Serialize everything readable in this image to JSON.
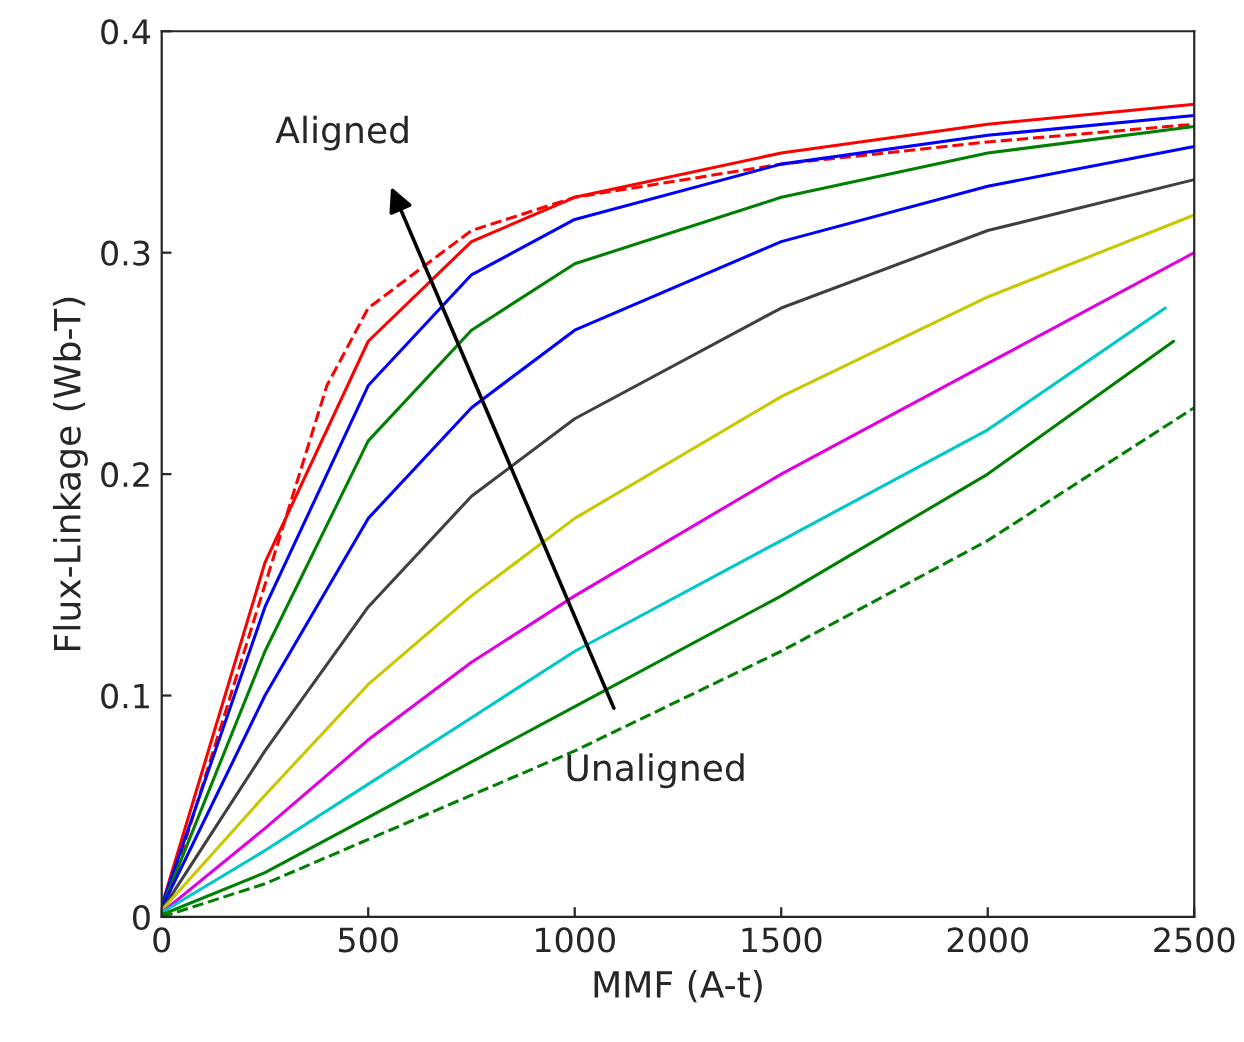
{
  "chart_data": {
    "type": "line",
    "xlabel": "MMF (A-t)",
    "ylabel": "Flux-Linkage (Wb-T)",
    "xlim": [
      0,
      2500
    ],
    "ylim": [
      0,
      0.4
    ],
    "xticks": [
      0,
      500,
      1000,
      1500,
      2000,
      2500
    ],
    "yticks": [
      0,
      0.1,
      0.2,
      0.3,
      0.4
    ],
    "grid": false,
    "marker": "none",
    "annotations": [
      "Aligned",
      "Unaligned"
    ],
    "series": [
      {
        "color": "#ff0000",
        "line_style": "dashed",
        "x": [
          0,
          100,
          250,
          400,
          500,
          750,
          1000,
          1500,
          2000,
          2500
        ],
        "values": [
          0,
          0.06,
          0.15,
          0.24,
          0.275,
          0.31,
          0.325,
          0.34,
          0.35,
          0.358
        ]
      },
      {
        "color": "#ff0000",
        "x": [
          0,
          250,
          500,
          750,
          1000,
          1500,
          2000,
          2500
        ],
        "values": [
          0.005,
          0.16,
          0.26,
          0.305,
          0.325,
          0.345,
          0.358,
          0.367
        ]
      },
      {
        "color": "#0000ff",
        "x": [
          0,
          250,
          500,
          750,
          1000,
          1500,
          2000,
          2500
        ],
        "values": [
          0.005,
          0.14,
          0.24,
          0.29,
          0.315,
          0.34,
          0.353,
          0.362
        ]
      },
      {
        "color": "#008000",
        "x": [
          0,
          250,
          500,
          750,
          1000,
          1500,
          2000,
          2500
        ],
        "values": [
          0.004,
          0.12,
          0.215,
          0.265,
          0.295,
          0.325,
          0.345,
          0.357
        ]
      },
      {
        "color": "#0000ff",
        "x": [
          0,
          250,
          500,
          750,
          1000,
          1500,
          2000,
          2500
        ],
        "values": [
          0.004,
          0.1,
          0.18,
          0.23,
          0.265,
          0.305,
          0.33,
          0.348
        ]
      },
      {
        "color": "#404040",
        "x": [
          0,
          250,
          500,
          750,
          1000,
          1500,
          2000,
          2500
        ],
        "values": [
          0.003,
          0.075,
          0.14,
          0.19,
          0.225,
          0.275,
          0.31,
          0.333
        ]
      },
      {
        "color": "#c8c800",
        "x": [
          0,
          250,
          500,
          750,
          1000,
          1500,
          2000,
          2500
        ],
        "values": [
          0.003,
          0.055,
          0.105,
          0.145,
          0.18,
          0.235,
          0.28,
          0.317
        ]
      },
      {
        "color": "#e000e0",
        "x": [
          0,
          250,
          500,
          750,
          1000,
          1500,
          2000,
          2500
        ],
        "values": [
          0.002,
          0.04,
          0.08,
          0.115,
          0.145,
          0.2,
          0.25,
          0.3
        ]
      },
      {
        "color": "#00c8c8",
        "x": [
          0,
          250,
          500,
          750,
          1000,
          1500,
          2000,
          2430
        ],
        "values": [
          0.002,
          0.03,
          0.06,
          0.09,
          0.12,
          0.17,
          0.22,
          0.275
        ]
      },
      {
        "color": "#008000",
        "x": [
          0,
          250,
          500,
          750,
          1000,
          1500,
          2000,
          2450
        ],
        "values": [
          0.001,
          0.02,
          0.045,
          0.07,
          0.095,
          0.145,
          0.2,
          0.26
        ]
      },
      {
        "color": "#008000",
        "line_style": "dashed",
        "x": [
          0,
          250,
          500,
          750,
          1000,
          1500,
          2000,
          2500
        ],
        "values": [
          0,
          0.015,
          0.035,
          0.055,
          0.075,
          0.12,
          0.17,
          0.23
        ]
      }
    ]
  }
}
